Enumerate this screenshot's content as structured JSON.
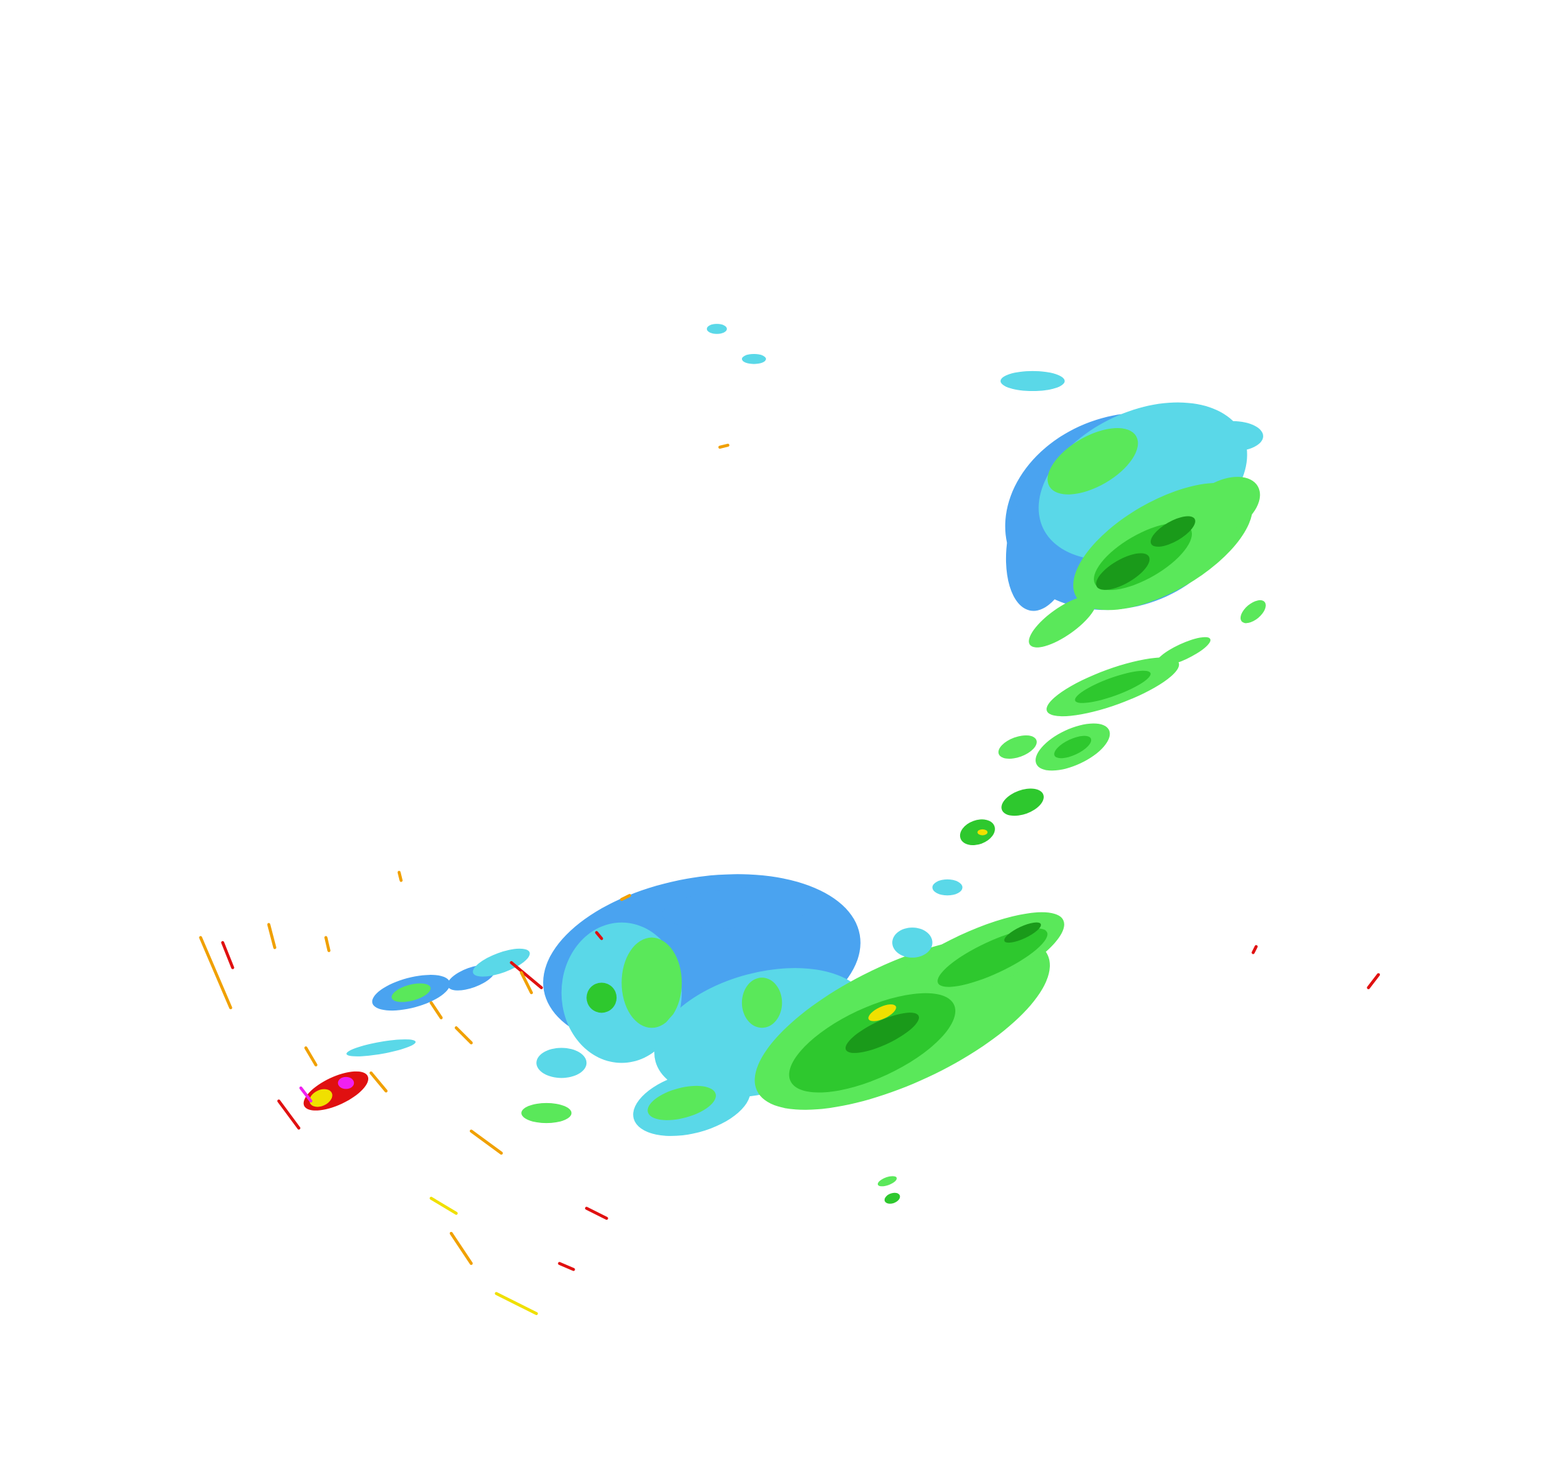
{
  "map": {
    "type": "weather-radar-reflectivity",
    "background": "#ffffff",
    "palette": {
      "light_blue": "#4aa3f0",
      "cyan": "#5ad8e8",
      "light_green": "#5ae85a",
      "green": "#2ec82e",
      "dark_green": "#1a9a1a",
      "yellow": "#f0e000",
      "orange": "#f0a000",
      "red": "#e01010",
      "magenta": "#f020f0"
    }
  }
}
